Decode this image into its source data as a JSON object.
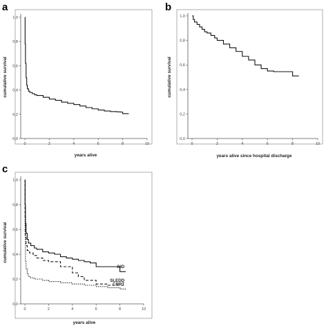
{
  "chart_data": [
    {
      "panel": "a",
      "type": "line",
      "xlabel": "years alive",
      "ylabel": "cumulative survival",
      "xlim": [
        0,
        10
      ],
      "ylim": [
        0,
        1.0
      ],
      "xticks": [
        "0",
        "2",
        "4",
        "6",
        "8",
        "10"
      ],
      "yticks": [
        "0,0",
        "0,2",
        "0,4",
        "0,6",
        "0,8",
        "1,0"
      ],
      "grid": false,
      "series": [
        {
          "color": "#111111",
          "dash": "solid",
          "x": [
            0,
            0.02,
            0.05,
            0.1,
            0.15,
            0.2,
            0.3,
            0.4,
            0.6,
            0.8,
            1.0,
            1.5,
            2.0,
            2.5,
            3.0,
            3.5,
            4.0,
            4.5,
            5.0,
            5.5,
            6.0,
            6.5,
            7.0,
            7.5,
            7.8,
            8.0,
            8.5
          ],
          "y": [
            1.0,
            0.78,
            0.62,
            0.5,
            0.44,
            0.41,
            0.39,
            0.38,
            0.37,
            0.36,
            0.355,
            0.34,
            0.325,
            0.315,
            0.3,
            0.29,
            0.28,
            0.268,
            0.255,
            0.245,
            0.235,
            0.227,
            0.222,
            0.22,
            0.218,
            0.205,
            0.205
          ]
        }
      ]
    },
    {
      "panel": "b",
      "type": "line",
      "xlabel": "years alive since hospital discharge",
      "ylabel": "cumulative survival",
      "xlim": [
        0,
        10
      ],
      "ylim": [
        0,
        1.0
      ],
      "xticks": [
        "0",
        "2",
        "4",
        "6",
        "8",
        "10"
      ],
      "yticks": [
        "0,0",
        "0,2",
        "0,4",
        "0,6",
        "0,8",
        "1,0"
      ],
      "grid": false,
      "series": [
        {
          "color": "#111111",
          "dash": "solid",
          "x": [
            0,
            0.1,
            0.2,
            0.4,
            0.6,
            0.8,
            1.0,
            1.2,
            1.5,
            1.8,
            2.0,
            2.5,
            3.0,
            3.5,
            4.0,
            4.5,
            5.0,
            5.5,
            6.0,
            6.5,
            7.0,
            7.5,
            8.0,
            8.5
          ],
          "y": [
            1.0,
            0.97,
            0.95,
            0.93,
            0.91,
            0.89,
            0.87,
            0.86,
            0.84,
            0.82,
            0.8,
            0.77,
            0.74,
            0.71,
            0.67,
            0.64,
            0.6,
            0.57,
            0.55,
            0.545,
            0.545,
            0.545,
            0.51,
            0.51
          ]
        }
      ]
    },
    {
      "panel": "c",
      "type": "line",
      "xlabel": "years alive",
      "ylabel": "cumulative survival",
      "xlim": [
        0,
        10
      ],
      "ylim": [
        0,
        1.0
      ],
      "xticks": [
        "0",
        "2",
        "4",
        "6",
        "8",
        "10"
      ],
      "yticks": [
        "0,0",
        "0,2",
        "0,4",
        "0,6",
        "0,8",
        "1,0"
      ],
      "grid": false,
      "series": [
        {
          "name": "IHD",
          "color": "#111111",
          "dash": "solid",
          "x": [
            0,
            0.02,
            0.05,
            0.1,
            0.2,
            0.3,
            0.5,
            0.8,
            1.0,
            1.5,
            2.0,
            2.5,
            3.0,
            3.5,
            4.0,
            4.5,
            5.0,
            5.5,
            6.0,
            7.0,
            7.5,
            8.0,
            8.5
          ],
          "y": [
            1.0,
            0.8,
            0.65,
            0.57,
            0.52,
            0.49,
            0.47,
            0.45,
            0.44,
            0.42,
            0.41,
            0.4,
            0.38,
            0.37,
            0.36,
            0.35,
            0.34,
            0.33,
            0.3,
            0.3,
            0.3,
            0.26,
            0.26
          ]
        },
        {
          "name": "SLEDD",
          "color": "#111111",
          "dash": "dashed",
          "x": [
            0,
            0.02,
            0.05,
            0.1,
            0.2,
            0.4,
            0.7,
            1.0,
            1.5,
            2.0,
            3.0,
            4.0,
            4.5,
            5.0,
            6.0,
            7.0,
            8.0,
            8.5
          ],
          "y": [
            1.0,
            0.7,
            0.55,
            0.47,
            0.43,
            0.41,
            0.39,
            0.37,
            0.35,
            0.34,
            0.3,
            0.25,
            0.22,
            0.19,
            0.16,
            0.15,
            0.15,
            0.15
          ]
        },
        {
          "name": "CRRT",
          "color": "#111111",
          "dash": "dotted",
          "x": [
            0,
            0.02,
            0.05,
            0.1,
            0.2,
            0.3,
            0.5,
            0.8,
            1.0,
            1.5,
            2.0,
            3.0,
            4.0,
            5.0,
            6.0,
            7.0,
            8.0,
            8.5
          ],
          "y": [
            1.0,
            0.55,
            0.35,
            0.28,
            0.24,
            0.22,
            0.21,
            0.2,
            0.2,
            0.19,
            0.18,
            0.17,
            0.16,
            0.15,
            0.14,
            0.13,
            0.12,
            0.12
          ]
        }
      ]
    }
  ]
}
